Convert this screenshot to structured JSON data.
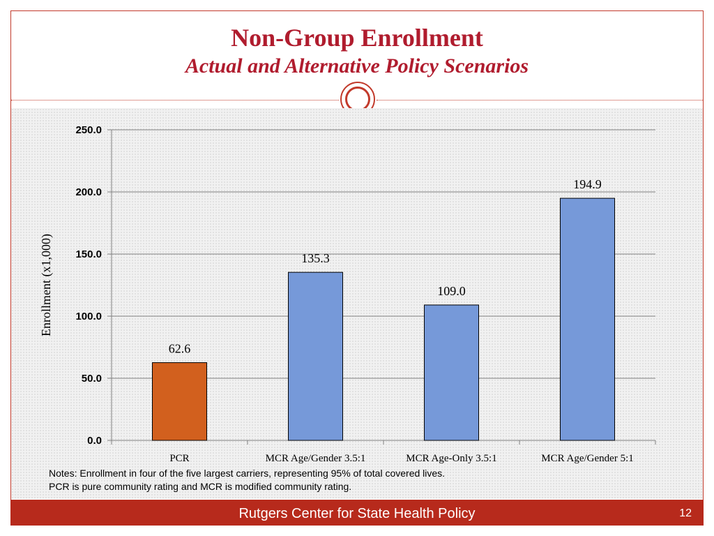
{
  "slide": {
    "title": "Non-Group Enrollment",
    "subtitle": "Actual and Alternative Policy Scenarios",
    "notes": [
      "Notes: Enrollment in four of the five largest carriers, representing 95% of total covered lives.",
      "PCR is pure community rating and MCR is modified community rating."
    ],
    "footer": "Rutgers Center for State Health Policy",
    "slide_number": "12"
  },
  "colors": {
    "accent": "#b01c2e",
    "footer": "#b72a1c",
    "pcr_bar": "#d2601e",
    "mcr_bar": "#7699d9"
  },
  "chart_data": {
    "type": "bar",
    "categories": [
      "PCR",
      "MCR Age/Gender 3.5:1",
      "MCR Age-Only 3.5:1",
      "MCR Age/Gender 5:1"
    ],
    "values": [
      62.6,
      135.3,
      109.0,
      194.9
    ],
    "value_labels": [
      "62.6",
      "135.3",
      "109.0",
      "194.9"
    ],
    "bar_colors": [
      "#d2601e",
      "#7699d9",
      "#7699d9",
      "#7699d9"
    ],
    "title": "",
    "xlabel": "",
    "ylabel": "Enrollment (x1,000)",
    "ylim": [
      0,
      250
    ],
    "yticks": [
      0,
      50,
      100,
      150,
      200,
      250
    ],
    "ytick_labels": [
      "0.0",
      "50.0",
      "100.0",
      "150.0",
      "200.0",
      "250.0"
    ],
    "grid": true,
    "legend": "none"
  }
}
